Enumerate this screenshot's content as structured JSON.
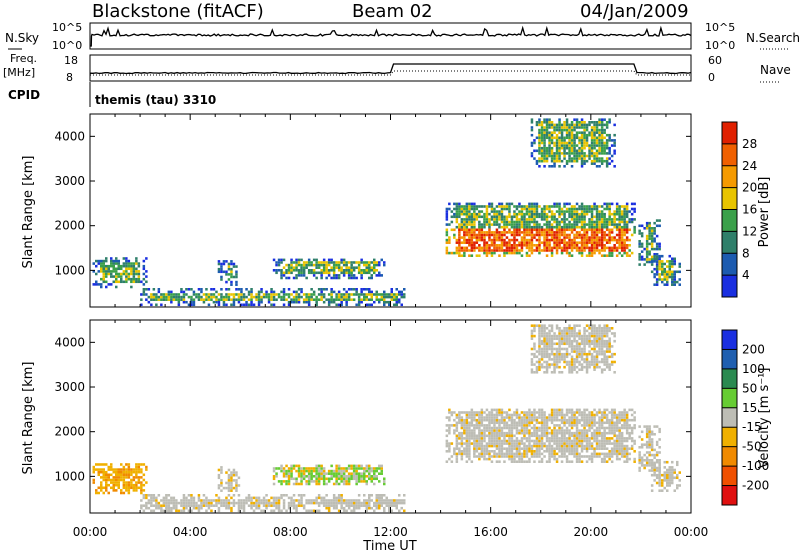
{
  "header": {
    "station": "Blackstone (fitACF)",
    "beam": "Beam 02",
    "date": "04/Jan/2009"
  },
  "top_panels": {
    "nsky_label": "N.Sky",
    "nsky_ticks": [
      "10^5",
      "10^0"
    ],
    "nsearch_label": "N.Search",
    "freq_label": "Freq.",
    "freq_unit": "[MHz]",
    "freq_ticks": [
      "18",
      "8"
    ],
    "nave_label": "Nave",
    "nave_ticks": [
      "60",
      "0"
    ],
    "cpid_label": "CPID",
    "cpid_value": "themis (tau) 3310"
  },
  "colors": {
    "power_scale": [
      "#1a2fe0",
      "#1c5bb0",
      "#2f7f6a",
      "#3aa04a",
      "#e8c400",
      "#f59a00",
      "#f06000",
      "#e02000"
    ],
    "velocity_scale": [
      "#1a2fe0",
      "#1f5fb0",
      "#2a8a50",
      "#66cc33",
      "#bdbdb5",
      "#f0b000",
      "#f08a00",
      "#f05000",
      "#e01010"
    ],
    "frame": "#000000"
  },
  "chart_data": [
    {
      "type": "heatmap",
      "name": "power",
      "ylabel": "Slant Range [km]",
      "xlabel": "",
      "x_ticks": [
        "00:00",
        "04:00",
        "08:00",
        "12:00",
        "16:00",
        "20:00",
        "00:00"
      ],
      "y_ticks": [
        "1000",
        "2000",
        "3000",
        "4000"
      ],
      "xlim_hours": [
        0,
        24
      ],
      "ylim_km": [
        180,
        4500
      ],
      "colorbar_label": "Power [dB]",
      "colorbar_ticks": [
        "28",
        "24",
        "20",
        "16",
        "12",
        "8",
        "4"
      ],
      "echo_regions": [
        {
          "t0": 0.1,
          "t1": 2.3,
          "r0": 600,
          "r1": 1250
        },
        {
          "t0": 5.1,
          "t1": 5.9,
          "r0": 650,
          "r1": 1200
        },
        {
          "t0": 7.3,
          "t1": 11.7,
          "r0": 800,
          "r1": 1250
        },
        {
          "t0": 2.0,
          "t1": 12.5,
          "r0": 200,
          "r1": 550
        },
        {
          "t0": 14.2,
          "t1": 21.8,
          "r0": 1300,
          "r1": 2500
        },
        {
          "t0": 17.6,
          "t1": 21.0,
          "r0": 3300,
          "r1": 4400
        },
        {
          "t0": 21.9,
          "t1": 22.8,
          "r0": 1100,
          "r1": 2100
        },
        {
          "t0": 22.4,
          "t1": 23.6,
          "r0": 650,
          "r1": 1300
        }
      ]
    },
    {
      "type": "heatmap",
      "name": "velocity",
      "ylabel": "Slant Range [km]",
      "xlabel": "Time UT",
      "x_ticks": [
        "00:00",
        "04:00",
        "08:00",
        "12:00",
        "16:00",
        "20:00",
        "00:00"
      ],
      "y_ticks": [
        "1000",
        "2000",
        "3000",
        "4000"
      ],
      "xlim_hours": [
        0,
        24
      ],
      "ylim_km": [
        180,
        4500
      ],
      "colorbar_label": "Velocity [m s⁻¹]",
      "colorbar_ticks": [
        "200",
        "100",
        "50",
        "15",
        "-15",
        "-50",
        "-100",
        "-200"
      ]
    }
  ]
}
